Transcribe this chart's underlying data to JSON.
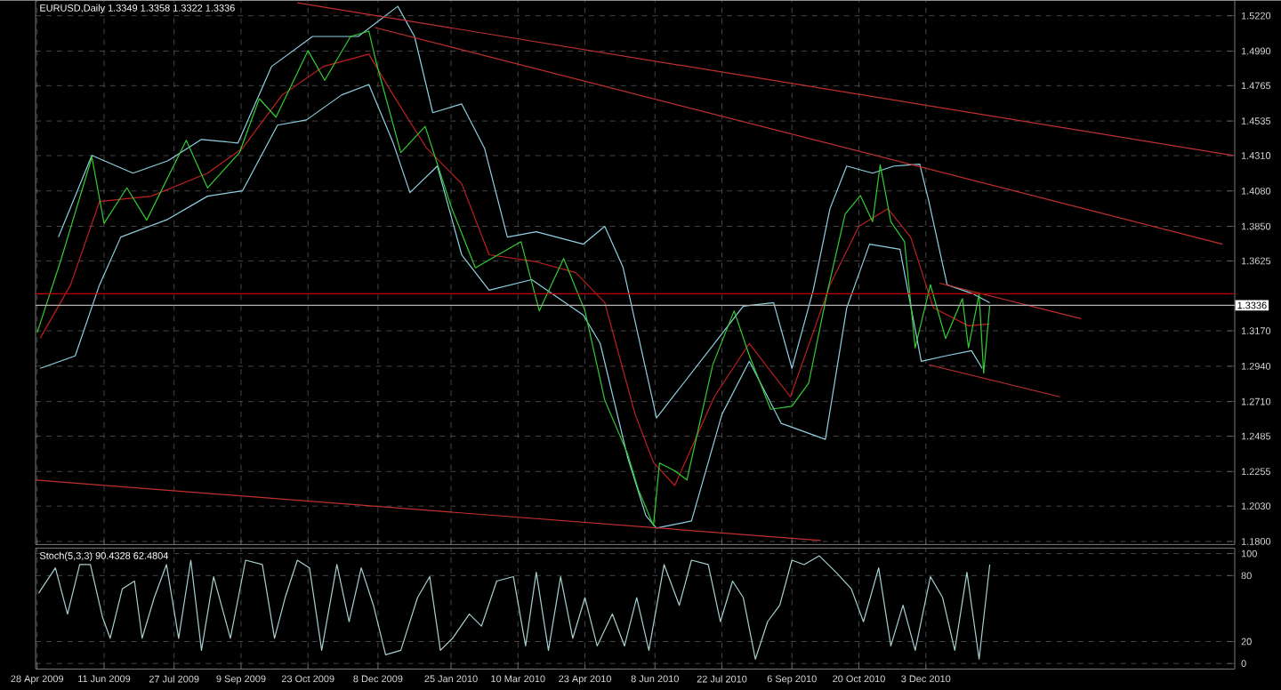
{
  "chart_data": [
    {
      "type": "line",
      "title": "EURUSD,Daily  1.3349 1.3358 1.3322 1.3336",
      "xlim": [
        "2009-04-27",
        "2011-06-24"
      ],
      "ylim": [
        1.178,
        1.532
      ],
      "xticks": [
        {
          "value": "2009-04-28",
          "label": null
        },
        {
          "value": "2009-06-11",
          "label": null
        },
        {
          "value": "2009-07-27",
          "label": null
        },
        {
          "value": "2009-09-09",
          "label": null
        },
        {
          "value": "2009-10-23",
          "label": null
        },
        {
          "value": "2009-12-08",
          "label": null
        },
        {
          "value": "2010-01-25",
          "label": null
        },
        {
          "value": "2010-03-10",
          "label": null
        },
        {
          "value": "2010-04-23",
          "label": null
        },
        {
          "value": "2010-06-08",
          "label": null
        },
        {
          "value": "2010-07-22",
          "label": null
        },
        {
          "value": "2010-09-06",
          "label": null
        },
        {
          "value": "2010-10-20",
          "label": null
        },
        {
          "value": "2010-12-03",
          "label": null
        }
      ],
      "yticks": [
        {
          "value": 1.18,
          "label": "1.1800"
        },
        {
          "value": 1.203,
          "label": "1.2030"
        },
        {
          "value": 1.2255,
          "label": "1.2255"
        },
        {
          "value": 1.2485,
          "label": "1.2485"
        },
        {
          "value": 1.271,
          "label": "1.2710"
        },
        {
          "value": 1.294,
          "label": "1.2940"
        },
        {
          "value": 1.317,
          "label": "1.3170"
        },
        {
          "value": 1.3625,
          "label": "1.3625"
        },
        {
          "value": 1.385,
          "label": "1.3850"
        },
        {
          "value": 1.408,
          "label": "1.4080"
        },
        {
          "value": 1.431,
          "label": "1.4310"
        },
        {
          "value": 1.4535,
          "label": "1.4535"
        },
        {
          "value": 1.4765,
          "label": "1.4765"
        },
        {
          "value": 1.499,
          "label": "1.4990"
        },
        {
          "value": 1.522,
          "label": "1.5220"
        }
      ],
      "tick_labels": "y",
      "grid": true,
      "ref_lines": [
        {
          "axis": "y",
          "value": 1.3411,
          "color": "#c00000"
        },
        {
          "axis": "y",
          "value": 1.3336,
          "label": "1.3336",
          "color": "#b0b0b0"
        }
      ],
      "series": [
        {
          "color": "#8fd0e0",
          "x": [
            "2009-05-12",
            "2009-06-03",
            "2009-06-30",
            "2009-07-23",
            "2009-08-14",
            "2009-09-07",
            "2009-09-29",
            "2009-10-26",
            "2009-11-25",
            "2009-12-21",
            "2010-01-01",
            "2010-01-13",
            "2010-02-01",
            "2010-02-16",
            "2010-03-03",
            "2010-03-22",
            "2010-04-22",
            "2010-05-06",
            "2010-05-18",
            "2010-06-07",
            "2010-06-09",
            "2010-07-17",
            "2010-08-05",
            "2010-08-25",
            "2010-09-06",
            "2010-09-20",
            "2010-10-01",
            "2010-10-12",
            "2010-10-29",
            "2010-11-12",
            "2010-11-29",
            "2010-12-05",
            "2010-12-17",
            "2011-01-03",
            "2011-01-14"
          ],
          "values": [
            1.378,
            1.4311,
            1.4196,
            1.4277,
            1.4415,
            1.4392,
            1.4889,
            1.5085,
            1.5085,
            1.5281,
            1.5085,
            1.4589,
            1.4646,
            1.4358,
            1.378,
            1.3815,
            1.3734,
            1.385,
            1.3584,
            1.2695,
            1.2603,
            1.3088,
            1.333,
            1.3353,
            1.2926,
            1.3434,
            1.3965,
            1.4242,
            1.4196,
            1.4242,
            1.4254,
            1.4011,
            1.3469,
            1.3411,
            1.3353
          ]
        },
        {
          "color": "#8fd0e0",
          "x": [
            "2009-04-30",
            "2009-05-23",
            "2009-06-08",
            "2009-06-22",
            "2009-07-23",
            "2009-08-18",
            "2009-09-10",
            "2009-10-03",
            "2009-10-22",
            "2009-11-14",
            "2009-12-02",
            "2009-12-18",
            "2009-12-29",
            "2010-01-16",
            "2010-02-01",
            "2010-02-19",
            "2010-03-19",
            "2010-04-22",
            "2010-05-03",
            "2010-05-21",
            "2010-06-02",
            "2010-06-09",
            "2010-07-02",
            "2010-07-22",
            "2010-08-09",
            "2010-08-30",
            "2010-09-28",
            "2010-10-12",
            "2010-10-27",
            "2010-11-16",
            "2010-11-30",
            "2010-12-16",
            "2011-01-02",
            "2011-01-09"
          ],
          "values": [
            1.2926,
            1.3007,
            1.3469,
            1.378,
            1.3896,
            1.4046,
            1.4081,
            1.4508,
            1.4542,
            1.4704,
            1.4773,
            1.4392,
            1.4069,
            1.4242,
            1.3665,
            1.3434,
            1.3503,
            1.3272,
            1.3088,
            1.2349,
            1.1968,
            1.1887,
            1.1933,
            1.2626,
            1.2972,
            1.2568,
            1.2464,
            1.3319,
            1.3734,
            1.37,
            1.2972,
            1.3007,
            1.3041,
            1.2926
          ]
        },
        {
          "color": "#c02020",
          "x": [
            "2009-04-30",
            "2009-05-20",
            "2009-06-08",
            "2009-07-12",
            "2009-08-18",
            "2009-09-10",
            "2009-10-06",
            "2009-11-02",
            "2009-12-02",
            "2009-12-18",
            "2010-01-09",
            "2010-02-01",
            "2010-02-19",
            "2010-03-22",
            "2010-04-17",
            "2010-05-06",
            "2010-05-26",
            "2010-06-07",
            "2010-06-21",
            "2010-07-17",
            "2010-08-09",
            "2010-09-05",
            "2010-10-01",
            "2010-10-20",
            "2010-11-08",
            "2010-11-23",
            "2010-12-08",
            "2010-12-31",
            "2011-01-14"
          ],
          "values": [
            1.3122,
            1.3469,
            1.4011,
            1.4046,
            1.4196,
            1.4358,
            1.4704,
            1.4889,
            1.497,
            1.4704,
            1.4358,
            1.4127,
            1.3665,
            1.3619,
            1.3549,
            1.3353,
            1.2626,
            1.2314,
            1.2164,
            1.2741,
            1.3088,
            1.2741,
            1.3469,
            1.385,
            1.3965,
            1.378,
            1.3319,
            1.3203,
            1.3215
          ]
        },
        {
          "color": "#32cd32",
          "x": [
            "2009-04-28",
            "2009-05-14",
            "2009-06-03",
            "2009-06-11",
            "2009-06-26",
            "2009-07-09",
            "2009-08-04",
            "2009-08-18",
            "2009-09-08",
            "2009-09-21",
            "2009-10-02",
            "2009-10-23",
            "2009-11-03",
            "2009-11-20",
            "2009-12-02",
            "2009-12-07",
            "2009-12-23",
            "2010-01-08",
            "2010-01-25",
            "2010-02-10",
            "2010-03-12",
            "2010-03-24",
            "2010-04-09",
            "2010-04-23",
            "2010-05-06",
            "2010-05-21",
            "2010-05-28",
            "2010-06-07",
            "2010-06-11",
            "2010-06-21",
            "2010-06-29",
            "2010-07-16",
            "2010-07-30",
            "2010-08-09",
            "2010-08-23",
            "2010-09-06",
            "2010-09-17",
            "2010-09-29",
            "2010-10-11",
            "2010-10-21",
            "2010-10-29",
            "2010-11-03",
            "2010-11-10",
            "2010-11-19",
            "2010-11-26",
            "2010-12-06",
            "2010-12-16",
            "2010-12-27",
            "2010-12-31",
            "2011-01-07",
            "2011-01-10",
            "2011-01-14"
          ],
          "values": [
            1.3157,
            1.3642,
            1.43,
            1.387,
            1.41,
            1.389,
            1.441,
            1.41,
            1.433,
            1.468,
            1.456,
            1.4993,
            1.48,
            1.5085,
            1.512,
            1.491,
            1.433,
            1.45,
            1.398,
            1.358,
            1.375,
            1.33,
            1.364,
            1.33,
            1.272,
            1.237,
            1.214,
            1.1903,
            1.231,
            1.226,
            1.22,
            1.295,
            1.33,
            1.301,
            1.266,
            1.268,
            1.283,
            1.341,
            1.393,
            1.405,
            1.388,
            1.425,
            1.388,
            1.375,
            1.306,
            1.347,
            1.312,
            1.338,
            1.306,
            1.341,
            1.2895,
            1.3336
          ]
        },
        {
          "color": "#c03030",
          "x": [
            "2009-10-16",
            "2011-06-23"
          ],
          "values": [
            1.5304,
            1.4311
          ]
        },
        {
          "color": "#c03030",
          "x": [
            "2009-12-06",
            "2011-06-16"
          ],
          "values": [
            1.5143,
            1.3734
          ]
        },
        {
          "color": "#c03030",
          "x": [
            "2009-04-27",
            "2010-09-25"
          ],
          "values": [
            1.2199,
            1.1806
          ]
        },
        {
          "color": "#c03030",
          "x": [
            "2010-12-12",
            "2011-03-15"
          ],
          "values": [
            1.348,
            1.3249
          ]
        },
        {
          "color": "#c03030",
          "x": [
            "2010-12-05",
            "2011-03-01"
          ],
          "values": [
            1.2949,
            1.2741
          ]
        }
      ]
    },
    {
      "type": "line",
      "title": "Stoch(5,3,3) 90.4328 62.4804",
      "xlim": [
        "2009-04-27",
        "2011-06-24"
      ],
      "ylim": [
        -5,
        105
      ],
      "xticks": [
        {
          "value": "2009-04-28",
          "label": "28 Apr 2009"
        },
        {
          "value": "2009-06-11",
          "label": "11 Jun 2009"
        },
        {
          "value": "2009-07-27",
          "label": "27 Jul 2009"
        },
        {
          "value": "2009-09-09",
          "label": "9 Sep 2009"
        },
        {
          "value": "2009-10-23",
          "label": "23 Oct 2009"
        },
        {
          "value": "2009-12-08",
          "label": "8 Dec 2009"
        },
        {
          "value": "2010-01-25",
          "label": "25 Jan 2010"
        },
        {
          "value": "2010-03-10",
          "label": "10 Mar 2010"
        },
        {
          "value": "2010-04-23",
          "label": "23 Apr 2010"
        },
        {
          "value": "2010-06-08",
          "label": "8 Jun 2010"
        },
        {
          "value": "2010-07-22",
          "label": "22 Jul 2010"
        },
        {
          "value": "2010-09-06",
          "label": "6 Sep 2010"
        },
        {
          "value": "2010-10-20",
          "label": "20 Oct 2010"
        },
        {
          "value": "2010-12-03",
          "label": "3 Dec 2010"
        }
      ],
      "yticks": [
        0,
        20,
        80,
        100
      ],
      "grid": true,
      "series": [
        {
          "color": "#a8d0d0",
          "x": [
            "2009-04-29",
            "2009-05-10",
            "2009-05-18",
            "2009-05-26",
            "2009-06-02",
            "2009-06-10",
            "2009-06-15",
            "2009-06-23",
            "2009-07-01",
            "2009-07-06",
            "2009-07-14",
            "2009-07-22",
            "2009-07-30",
            "2009-08-07",
            "2009-08-14",
            "2009-08-22",
            "2009-09-02",
            "2009-09-12",
            "2009-09-23",
            "2009-10-01",
            "2009-10-08",
            "2009-10-16",
            "2009-10-24",
            "2009-11-01",
            "2009-11-11",
            "2009-11-19",
            "2009-11-27",
            "2009-12-05",
            "2009-12-13",
            "2009-12-23",
            "2010-01-03",
            "2010-01-11",
            "2010-01-18",
            "2010-01-26",
            "2010-02-06",
            "2010-02-14",
            "2010-02-24",
            "2010-03-07",
            "2010-03-15",
            "2010-03-22",
            "2010-03-30",
            "2010-04-07",
            "2010-04-15",
            "2010-04-23",
            "2010-05-01",
            "2010-05-11",
            "2010-05-19",
            "2010-05-27",
            "2010-06-04",
            "2010-06-14",
            "2010-06-24",
            "2010-07-02",
            "2010-07-13",
            "2010-07-21",
            "2010-07-29",
            "2010-08-05",
            "2010-08-13",
            "2010-08-21",
            "2010-08-29",
            "2010-09-06",
            "2010-09-14",
            "2010-09-24",
            "2010-10-05",
            "2010-10-15",
            "2010-10-23",
            "2010-11-02",
            "2010-11-10",
            "2010-11-18",
            "2010-11-26",
            "2010-12-06",
            "2010-12-14",
            "2010-12-22",
            "2010-12-30",
            "2011-01-07",
            "2011-01-14"
          ],
          "values": [
            64,
            87,
            45,
            90,
            90,
            42,
            23,
            68,
            75,
            23,
            60,
            90,
            23,
            94,
            12,
            79,
            23,
            94,
            90,
            23,
            60,
            94,
            87,
            12,
            90,
            38,
            87,
            53,
            8,
            12,
            60,
            79,
            12,
            23,
            45,
            34,
            75,
            79,
            16,
            83,
            12,
            79,
            23,
            60,
            16,
            45,
            16,
            60,
            12,
            90,
            53,
            94,
            90,
            38,
            75,
            60,
            4,
            38,
            53,
            94,
            90,
            98,
            83,
            68,
            38,
            87,
            16,
            53,
            12,
            79,
            60,
            12,
            83,
            4,
            90
          ]
        }
      ]
    }
  ]
}
